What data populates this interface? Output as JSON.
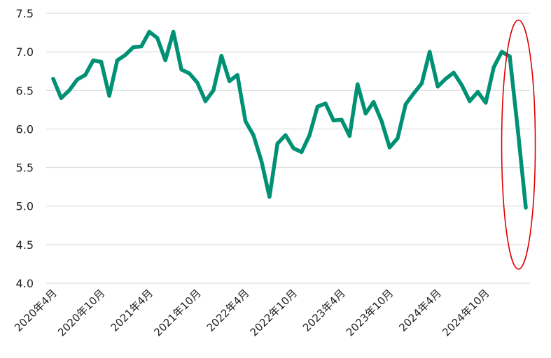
{
  "chart_data": {
    "type": "line",
    "title": "",
    "xlabel": "",
    "ylabel": "",
    "ylim": [
      4.0,
      7.5
    ],
    "yticks": [
      "4.0",
      "4.5",
      "5.0",
      "5.5",
      "6.0",
      "6.5",
      "7.0",
      "7.5"
    ],
    "grid": "horizontal",
    "line_color": "#009174",
    "highlight_color": "#e00000",
    "x_tick_labels": [
      {
        "label": "2020年4月",
        "index": 0
      },
      {
        "label": "2020年10月",
        "index": 6
      },
      {
        "label": "2021年4月",
        "index": 12
      },
      {
        "label": "2021年10月",
        "index": 18
      },
      {
        "label": "2022年4月",
        "index": 24
      },
      {
        "label": "2022年10月",
        "index": 30
      },
      {
        "label": "2023年4月",
        "index": 36
      },
      {
        "label": "2023年10月",
        "index": 42
      },
      {
        "label": "2024年4月",
        "index": 48
      },
      {
        "label": "2024年10月",
        "index": 54
      }
    ],
    "series": [
      {
        "values": [
          6.65,
          6.4,
          6.5,
          6.64,
          6.7,
          6.89,
          6.87,
          6.43,
          6.89,
          6.96,
          7.06,
          7.07,
          7.26,
          7.18,
          6.89,
          7.26,
          6.77,
          6.72,
          6.6,
          6.36,
          6.5,
          6.95,
          6.62,
          6.7,
          6.1,
          5.92,
          5.58,
          5.12,
          5.81,
          5.92,
          5.75,
          5.7,
          5.92,
          6.29,
          6.33,
          6.11,
          6.12,
          5.91,
          6.58,
          6.2,
          6.35,
          6.1,
          5.76,
          5.88,
          6.32,
          6.46,
          6.59,
          7.0,
          6.55,
          6.65,
          6.73,
          6.57,
          6.36,
          6.48,
          6.34,
          6.8,
          7.0,
          6.94,
          5.99,
          4.98
        ]
      }
    ],
    "highlight": {
      "shape": "ellipse",
      "from_index": 57,
      "to_index": 59
    }
  }
}
